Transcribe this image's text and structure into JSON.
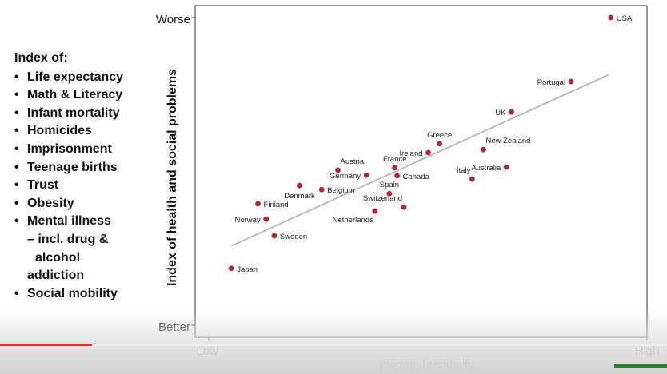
{
  "index_list": {
    "heading": "Index of:",
    "items": [
      {
        "text": "Life expectancy"
      },
      {
        "text": "Math & Literacy"
      },
      {
        "text": "Infant mortality"
      },
      {
        "text": "Homicides"
      },
      {
        "text": "Imprisonment"
      },
      {
        "text": "Teenage births"
      },
      {
        "text": "Trust"
      },
      {
        "text": "Obesity"
      },
      {
        "text": "Mental illness",
        "sub": [
          "– incl. drug &",
          "alcohol",
          "addiction"
        ]
      },
      {
        "text": "Social mobility"
      }
    ]
  },
  "video": {
    "progress": 0.138
  },
  "chart_data": {
    "type": "scatter",
    "title": "",
    "xlabel": "Income Inequality",
    "ylabel": "Index of health and social problems",
    "xlim": [
      0,
      100
    ],
    "ylim": [
      0,
      100
    ],
    "x_tick_labels": [
      {
        "value": 3,
        "label": "Low"
      },
      {
        "value": 100,
        "label": "High"
      }
    ],
    "y_tick_labels": [
      {
        "value": 0,
        "label": "Better"
      },
      {
        "value": 100,
        "label": "Worse"
      }
    ],
    "point_color": "#b5253a",
    "trendline_color": "#b4b4b4",
    "trendline": {
      "x1": 8,
      "y1": 25.8,
      "x2": 91.5,
      "y2": 81.4
    },
    "points": [
      {
        "label": "USA",
        "x": 92.0,
        "y": 100.0,
        "anchor": "right"
      },
      {
        "label": "Portugal",
        "x": 83.2,
        "y": 79.2,
        "anchor": "left"
      },
      {
        "label": "UK",
        "x": 70.0,
        "y": 69.3,
        "anchor": "left"
      },
      {
        "label": "Greece",
        "x": 54.1,
        "y": 59.0,
        "anchor": "above"
      },
      {
        "label": "Ireland",
        "x": 51.6,
        "y": 56.1,
        "anchor": "left"
      },
      {
        "label": "New Zealand",
        "x": 63.8,
        "y": 57.1,
        "anchor": "above-right"
      },
      {
        "label": "France",
        "x": 44.2,
        "y": 51.2,
        "anchor": "above"
      },
      {
        "label": "Australia",
        "x": 68.9,
        "y": 51.4,
        "anchor": "left"
      },
      {
        "label": "Italy",
        "x": 61.3,
        "y": 47.5,
        "anchor": "above-left"
      },
      {
        "label": "Canada",
        "x": 44.7,
        "y": 48.6,
        "anchor": "right"
      },
      {
        "label": "Austria",
        "x": 31.6,
        "y": 50.4,
        "anchor": "above-right"
      },
      {
        "label": "Germany",
        "x": 37.9,
        "y": 48.8,
        "anchor": "left"
      },
      {
        "label": "Denmark",
        "x": 23.1,
        "y": 45.4,
        "anchor": "below"
      },
      {
        "label": "Belgium",
        "x": 28.0,
        "y": 44.1,
        "anchor": "right"
      },
      {
        "label": "Spain",
        "x": 43.0,
        "y": 42.8,
        "anchor": "above"
      },
      {
        "label": "Switzerland",
        "x": 46.2,
        "y": 38.4,
        "anchor": "above-left"
      },
      {
        "label": "Netherlands",
        "x": 39.8,
        "y": 37.1,
        "anchor": "below-left"
      },
      {
        "label": "Finland",
        "x": 13.9,
        "y": 39.5,
        "anchor": "right"
      },
      {
        "label": "Norway",
        "x": 15.7,
        "y": 34.5,
        "anchor": "left"
      },
      {
        "label": "Sweden",
        "x": 17.5,
        "y": 29.1,
        "anchor": "right"
      },
      {
        "label": "Japan",
        "x": 8.0,
        "y": 18.5,
        "anchor": "right"
      }
    ]
  }
}
